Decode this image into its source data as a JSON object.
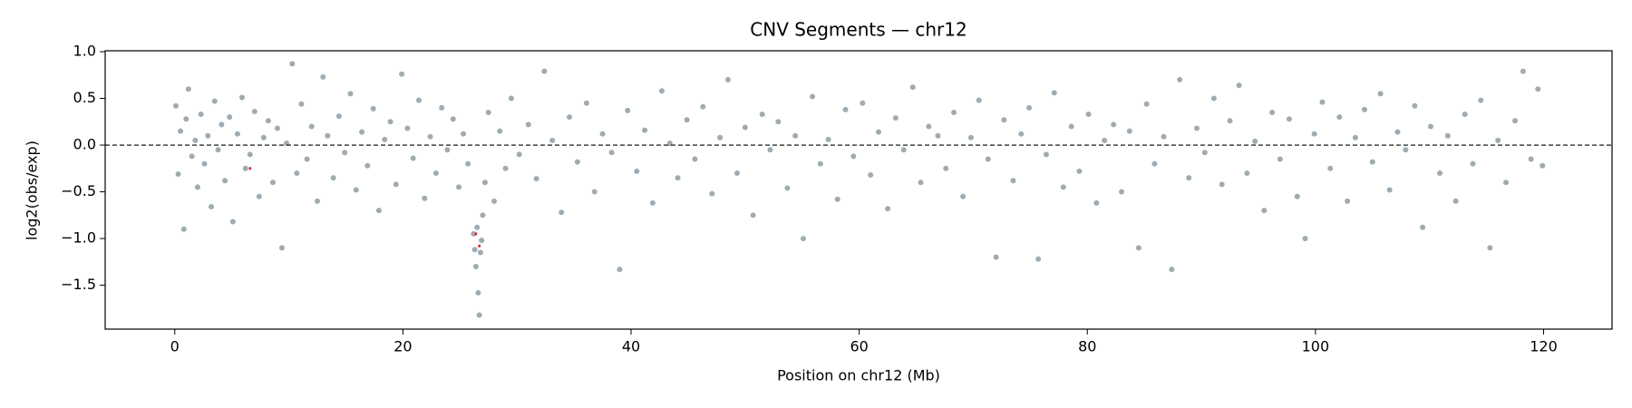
{
  "chart_data": {
    "type": "scatter",
    "title": "CNV Segments — chr12",
    "xlabel": "Position on chr12 (Mb)",
    "ylabel": "log2(obs/exp)",
    "xlim": [
      -6.1,
      126
    ],
    "ylim": [
      -1.97,
      1.01
    ],
    "xticks": [
      0,
      20,
      40,
      60,
      80,
      100,
      120
    ],
    "yticks": [
      {
        "value": -1.5,
        "label": "−1.5"
      },
      {
        "value": -1.0,
        "label": "−1.0"
      },
      {
        "value": -0.5,
        "label": "−0.5"
      },
      {
        "value": 0,
        "label": "0.0"
      },
      0.5,
      {
        "value": 1.0,
        "label": "1.0"
      }
    ],
    "color": "#4f6672",
    "reference_line": 0,
    "grid": false,
    "x": [
      0.1,
      0.3,
      0.5,
      0.8,
      1.0,
      1.2,
      1.5,
      1.8,
      2.0,
      2.3,
      2.6,
      2.9,
      3.2,
      3.5,
      3.8,
      4.1,
      4.4,
      4.8,
      5.1,
      5.5,
      5.9,
      6.2,
      6.6,
      7.0,
      7.4,
      7.8,
      8.2,
      8.6,
      9.0,
      9.4,
      9.8,
      10.3,
      10.7,
      11.1,
      11.6,
      12.0,
      12.5,
      13.0,
      13.4,
      13.9,
      14.4,
      14.9,
      15.4,
      15.9,
      16.4,
      16.9,
      17.4,
      17.9,
      18.4,
      18.9,
      19.4,
      19.9,
      20.4,
      20.9,
      21.4,
      21.9,
      22.4,
      22.9,
      23.4,
      23.9,
      24.4,
      24.9,
      25.3,
      25.7,
      26.2,
      26.3,
      26.4,
      26.5,
      26.6,
      26.7,
      26.8,
      26.9,
      27.0,
      27.2,
      27.5,
      28.0,
      28.5,
      29.0,
      29.5,
      30.2,
      31.0,
      31.7,
      32.4,
      33.1,
      33.9,
      34.6,
      35.3,
      36.1,
      36.8,
      37.5,
      38.3,
      39.0,
      39.7,
      40.5,
      41.2,
      41.9,
      42.7,
      43.4,
      44.1,
      44.9,
      45.6,
      46.3,
      47.1,
      47.8,
      48.5,
      49.3,
      50.0,
      50.7,
      51.5,
      52.2,
      52.9,
      53.7,
      54.4,
      55.1,
      55.9,
      56.6,
      57.3,
      58.1,
      58.8,
      59.5,
      60.3,
      61.0,
      61.7,
      62.5,
      63.2,
      63.9,
      64.7,
      65.4,
      66.1,
      66.9,
      67.6,
      68.3,
      69.1,
      69.8,
      70.5,
      71.3,
      72.0,
      72.7,
      73.5,
      74.2,
      74.9,
      75.7,
      76.4,
      77.1,
      77.9,
      78.6,
      79.3,
      80.1,
      80.8,
      81.5,
      82.3,
      83.0,
      83.7,
      84.5,
      85.2,
      85.9,
      86.7,
      87.4,
      88.1,
      88.9,
      89.6,
      90.3,
      91.1,
      91.8,
      92.5,
      93.3,
      94.0,
      94.7,
      95.5,
      96.2,
      96.9,
      97.7,
      98.4,
      99.1,
      99.9,
      100.6,
      101.3,
      102.1,
      102.8,
      103.5,
      104.3,
      105.0,
      105.7,
      106.5,
      107.2,
      107.9,
      108.7,
      109.4,
      110.1,
      110.9,
      111.6,
      112.3,
      113.1,
      113.8,
      114.5,
      115.3,
      116.0,
      116.7,
      117.5,
      118.2,
      118.9,
      119.5,
      119.9
    ],
    "values": [
      0.42,
      -0.31,
      0.15,
      -0.9,
      0.28,
      0.6,
      -0.12,
      0.05,
      -0.45,
      0.33,
      -0.2,
      0.1,
      -0.66,
      0.47,
      -0.05,
      0.22,
      -0.38,
      0.3,
      -0.82,
      0.12,
      0.51,
      -0.25,
      -0.1,
      0.36,
      -0.55,
      0.08,
      0.26,
      -0.4,
      0.18,
      -1.1,
      0.02,
      0.87,
      -0.3,
      0.44,
      -0.15,
      0.2,
      -0.6,
      0.73,
      0.1,
      -0.35,
      0.31,
      -0.08,
      0.55,
      -0.48,
      0.14,
      -0.22,
      0.39,
      -0.7,
      0.06,
      0.25,
      -0.42,
      0.76,
      0.18,
      -0.14,
      0.48,
      -0.57,
      0.09,
      -0.3,
      0.4,
      -0.05,
      0.28,
      -0.45,
      0.12,
      -0.2,
      -0.95,
      -1.12,
      -1.3,
      -0.88,
      -1.58,
      -1.82,
      -1.15,
      -1.02,
      -0.75,
      -0.4,
      0.35,
      -0.6,
      0.15,
      -0.25,
      0.5,
      -0.1,
      0.22,
      -0.36,
      0.79,
      0.05,
      -0.72,
      0.3,
      -0.18,
      0.45,
      -0.5,
      0.12,
      -0.08,
      -1.33,
      0.37,
      -0.28,
      0.16,
      -0.62,
      0.58,
      0.02,
      -0.35,
      0.27,
      -0.15,
      0.41,
      -0.52,
      0.08,
      0.7,
      -0.3,
      0.19,
      -0.75,
      0.33,
      -0.05,
      0.25,
      -0.46,
      0.1,
      -1.0,
      0.52,
      -0.2,
      0.06,
      -0.58,
      0.38,
      -0.12,
      0.45,
      -0.32,
      0.14,
      -0.68,
      0.29,
      -0.05,
      0.62,
      -0.4,
      0.2,
      0.1,
      -0.25,
      0.35,
      -0.55,
      0.08,
      0.48,
      -0.15,
      -1.2,
      0.27,
      -0.38,
      0.12,
      0.4,
      -1.22,
      -0.1,
      0.56,
      -0.45,
      0.2,
      -0.28,
      0.33,
      -0.62,
      0.05,
      0.22,
      -0.5,
      0.15,
      -1.1,
      0.44,
      -0.2,
      0.09,
      -1.33,
      0.7,
      -0.35,
      0.18,
      -0.08,
      0.5,
      -0.42,
      0.26,
      0.64,
      -0.3,
      0.04,
      -0.7,
      0.35,
      -0.15,
      0.28,
      -0.55,
      -1.0,
      0.12,
      0.46,
      -0.25,
      0.3,
      -0.6,
      0.08,
      0.38,
      -0.18,
      0.55,
      -0.48,
      0.14,
      -0.05,
      0.42,
      -0.88,
      0.2,
      -0.3,
      0.1,
      -0.6,
      0.33,
      -0.2,
      0.48,
      -1.1,
      0.05,
      -0.4,
      0.26,
      0.79,
      -0.15,
      0.6,
      -0.22
    ],
    "segments": {
      "color": "#d62728",
      "start": [
        6.5,
        26.3,
        26.6
      ],
      "end": [
        6.7,
        26.5,
        26.8
      ],
      "values": [
        -0.25,
        -0.95,
        -1.08
      ]
    }
  }
}
